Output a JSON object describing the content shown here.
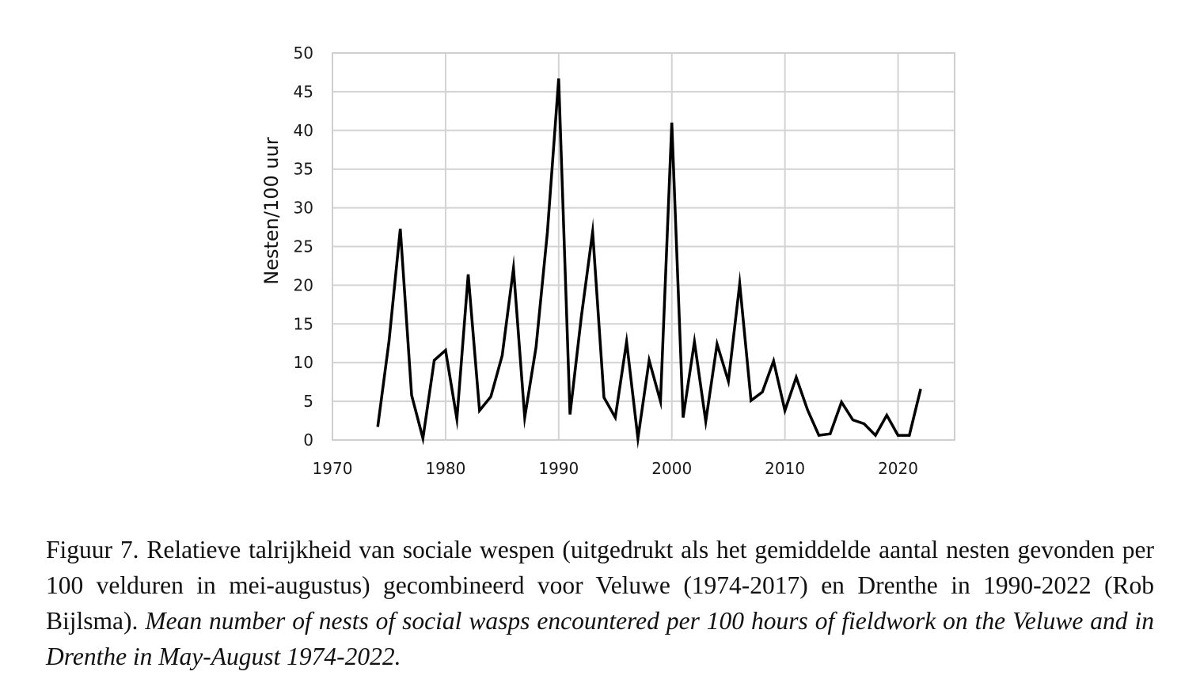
{
  "chart_data": {
    "type": "line",
    "xlabel": "",
    "ylabel": "Nesten/100 uur",
    "xlim": [
      1970,
      2025
    ],
    "ylim": [
      0,
      50
    ],
    "xticks": [
      1970,
      1980,
      1990,
      2000,
      2010,
      2020
    ],
    "yticks": [
      0,
      5,
      10,
      15,
      20,
      25,
      30,
      35,
      40,
      45,
      50
    ],
    "grid": true,
    "legend": "none",
    "line_color": "#000000",
    "series": [
      {
        "x": [
          1974,
          1975,
          1976,
          1977,
          1978,
          1979,
          1980,
          1981,
          1982,
          1983,
          1984,
          1985,
          1986,
          1987,
          1988,
          1989,
          1990,
          1991,
          1992,
          1993,
          1994,
          1995,
          1996,
          1997,
          1998,
          1999,
          2000,
          2001,
          2002,
          2003,
          2004,
          2005,
          2006,
          2007,
          2008,
          2009,
          2010,
          2011,
          2012,
          2013,
          2014,
          2015,
          2016,
          2017,
          2018,
          2019,
          2020,
          2021,
          2022
        ],
        "values": [
          1.7,
          12.8,
          27.3,
          5.8,
          0.2,
          10.3,
          11.6,
          2.7,
          21.4,
          3.8,
          5.6,
          10.9,
          22.2,
          2.9,
          12.0,
          26.8,
          46.7,
          3.3,
          15.9,
          26.9,
          5.5,
          2.9,
          12.7,
          0.2,
          10.3,
          5.0,
          41.0,
          2.9,
          12.7,
          2.4,
          12.4,
          7.6,
          20.2,
          5.1,
          6.2,
          10.2,
          3.8,
          8.1,
          3.9,
          0.6,
          0.8,
          4.9,
          2.6,
          2.1,
          0.6,
          3.2,
          0.6,
          0.6,
          6.6
        ]
      }
    ]
  },
  "caption": {
    "dutch": "Figuur 7. Relatieve talrijkheid van sociale wespen (uitgedrukt als het gemiddelde aantal nesten gevonden per 100 velduren in mei-augustus) gecombineerd voor Veluwe (1974-2017) en Drenthe in 1990-2022 (Rob Bijlsma).",
    "english": "Mean number of nests of social wasps encountered per 100 hours of fieldwork on the Veluwe and in Drenthe in May-August 1974-2022."
  }
}
